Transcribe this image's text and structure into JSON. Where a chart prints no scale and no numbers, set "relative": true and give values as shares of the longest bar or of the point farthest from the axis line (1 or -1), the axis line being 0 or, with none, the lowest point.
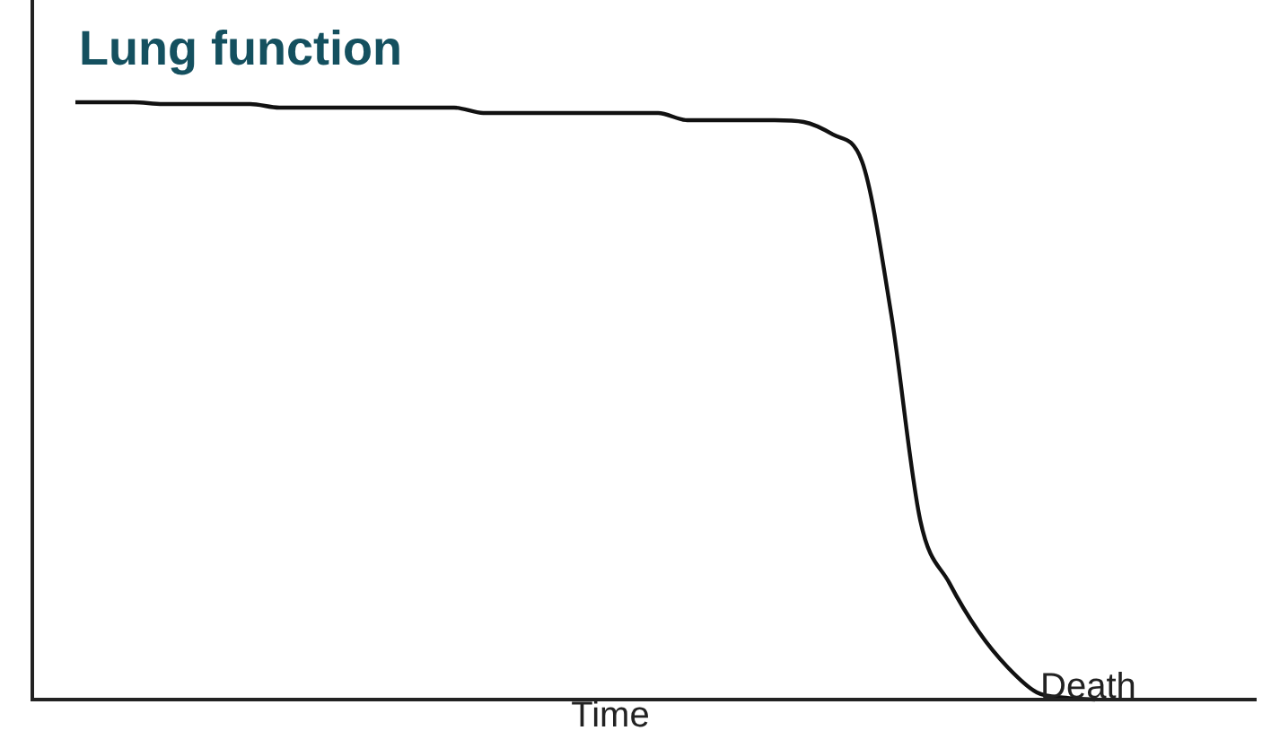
{
  "chart_data": {
    "type": "line",
    "relative": true,
    "title": "Lung function",
    "xlabel": "Time",
    "annotations": [
      "Death"
    ],
    "color": "#111111",
    "marker": "none",
    "categories": [
      null,
      null,
      null,
      null,
      null,
      null,
      null,
      null,
      null,
      null,
      null,
      null,
      null,
      null,
      null,
      null,
      null,
      null,
      null,
      null,
      null,
      null,
      null,
      null,
      null,
      null,
      null,
      null,
      null,
      null,
      null,
      null,
      null,
      null,
      null,
      null
    ],
    "values": [
      1,
      1,
      1,
      0.997,
      0.997,
      0.997,
      0.997,
      0.991,
      0.991,
      0.991,
      0.991,
      0.991,
      0.991,
      0.991,
      0.982,
      0.982,
      0.982,
      0.982,
      0.982,
      0.982,
      0.982,
      0.97,
      0.97,
      0.97,
      0.97,
      0.967,
      0.946,
      0.901,
      0.646,
      0.3,
      0.195,
      0.114,
      0.054,
      0.012,
      0.003,
      0
    ]
  }
}
